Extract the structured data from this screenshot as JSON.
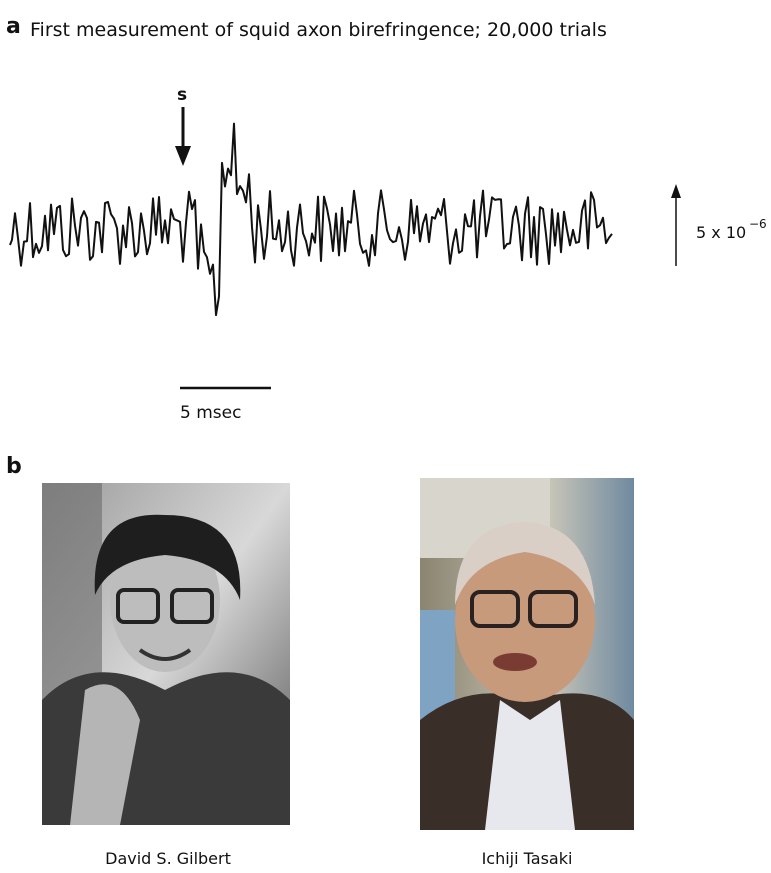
{
  "panel_a": {
    "label": "a",
    "title": "First measurement of squid axon birefringence;  20,000 trials",
    "stimulus_label": "s",
    "scale_y_base": "5 x 10",
    "scale_y_exponent": "−6",
    "scale_x_label": "5 msec"
  },
  "panel_b": {
    "label": "b",
    "photos": [
      {
        "caption": "David S. Gilbert"
      },
      {
        "caption": "Ichiji Tasaki"
      }
    ]
  }
}
